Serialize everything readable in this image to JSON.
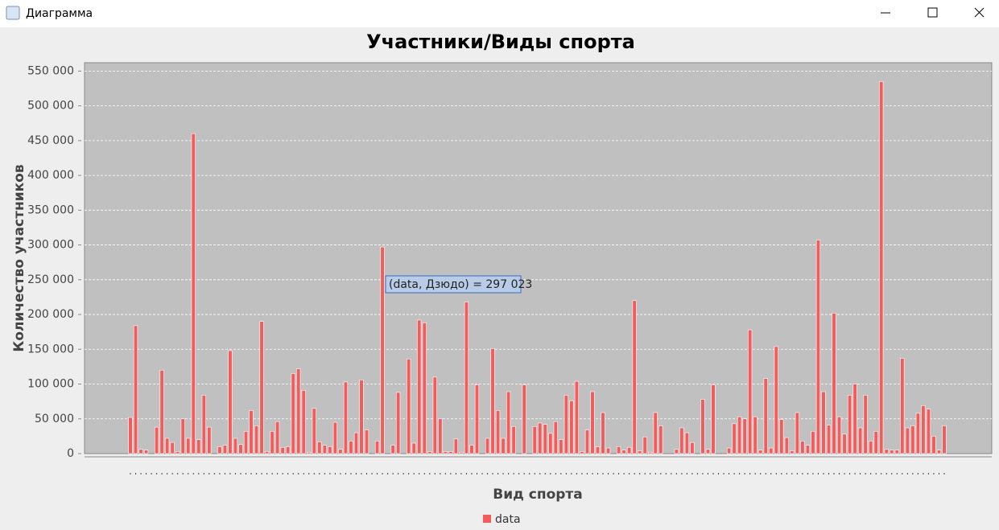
{
  "window_title": "Диаграмма",
  "chart_data": {
    "type": "bar",
    "title": "Участники/Виды спорта",
    "x_label": "Вид спорта",
    "y_label": "Количество участников",
    "tooltip": "(data, Дзюдо) = 297 023",
    "grid": true,
    "legend": "bottom",
    "ylim": [
      0,
      562000
    ],
    "yticks": [
      {
        "value": 0,
        "label": "0"
      },
      {
        "value": 50000,
        "label": "50 000"
      },
      {
        "value": 100000,
        "label": "100 000"
      },
      {
        "value": 150000,
        "label": "150 000"
      },
      {
        "value": 200000,
        "label": "200 000"
      },
      {
        "value": 250000,
        "label": "250 000"
      },
      {
        "value": 300000,
        "label": "300 000"
      },
      {
        "value": 350000,
        "label": "350 000"
      },
      {
        "value": 400000,
        "label": "400 000"
      },
      {
        "value": 450000,
        "label": "450 000"
      },
      {
        "value": 500000,
        "label": "500 000"
      },
      {
        "value": 550000,
        "label": "550 000"
      }
    ],
    "categories": [
      null,
      null,
      null,
      null,
      null,
      null,
      null,
      null,
      null,
      null,
      null,
      null,
      null,
      null,
      null,
      null,
      null,
      null,
      null,
      null,
      null,
      null,
      null,
      null,
      null,
      null,
      null,
      null,
      null,
      null,
      null,
      null,
      null,
      null,
      null,
      null,
      null,
      null,
      null,
      null,
      null,
      null,
      null,
      null,
      null,
      null,
      null,
      null,
      null,
      null,
      null,
      null,
      null,
      null,
      null,
      null,
      null,
      null,
      null,
      null,
      null,
      null,
      null,
      null,
      null,
      null,
      null,
      null,
      null,
      null,
      null,
      null,
      null,
      null,
      null,
      null,
      null,
      null,
      null,
      null,
      null,
      null,
      null,
      null,
      null,
      null,
      null,
      null,
      null,
      null,
      null,
      null,
      null,
      null,
      null,
      null,
      null,
      null,
      null,
      null,
      null,
      null,
      null,
      null,
      null,
      null,
      null,
      null,
      null,
      null,
      null,
      null,
      null,
      null,
      null,
      null,
      null,
      null,
      null,
      null,
      null,
      null,
      null,
      null,
      null,
      null,
      null,
      null,
      null,
      null,
      null,
      null,
      null,
      null,
      null,
      null,
      null,
      null,
      null,
      null,
      null,
      null,
      null,
      null,
      null,
      null,
      null,
      null,
      null,
      null,
      null,
      null,
      null,
      null,
      null,
      null
    ],
    "series": [
      {
        "name": "data",
        "color": "#f25c5c",
        "values": [
          52000,
          184000,
          6000,
          5000,
          0,
          38000,
          120000,
          22000,
          16000,
          3000,
          50000,
          22000,
          460000,
          20000,
          84000,
          38000,
          0,
          10000,
          12000,
          148000,
          22000,
          13000,
          32000,
          62000,
          40000,
          190000,
          3000,
          32000,
          46000,
          9000,
          10000,
          115000,
          122000,
          91000,
          2000,
          65000,
          17000,
          12000,
          10000,
          45000,
          6000,
          103000,
          18000,
          30000,
          106000,
          34000,
          0,
          18000,
          297023,
          0,
          12000,
          88000,
          0,
          136000,
          15000,
          192000,
          188000,
          3000,
          110000,
          50000,
          3000,
          3000,
          21000,
          2000,
          218000,
          12000,
          99000,
          0,
          22000,
          151000,
          62000,
          22000,
          89000,
          39000,
          0,
          99000,
          0,
          39000,
          44000,
          42000,
          29000,
          46000,
          20000,
          84000,
          76000,
          104000,
          3000,
          34000,
          89000,
          10000,
          59000,
          8000,
          0,
          10000,
          5000,
          9000,
          220000,
          4000,
          24000,
          2000,
          59000,
          40000,
          0,
          0,
          6000,
          37000,
          30000,
          16000,
          0,
          78000,
          6000,
          99000,
          0,
          0,
          8000,
          43000,
          53000,
          50000,
          178000,
          53000,
          5000,
          108000,
          8000,
          154000,
          49000,
          23000,
          4000,
          59000,
          18000,
          12000,
          32000,
          307000,
          89000,
          41000,
          202000,
          53000,
          28000,
          84000,
          100000,
          37000,
          84000,
          18000,
          32000,
          535000,
          6000,
          5000,
          5000,
          137000,
          37000,
          40000,
          58000,
          69000,
          64000,
          25000,
          5000,
          40000
        ]
      }
    ]
  }
}
